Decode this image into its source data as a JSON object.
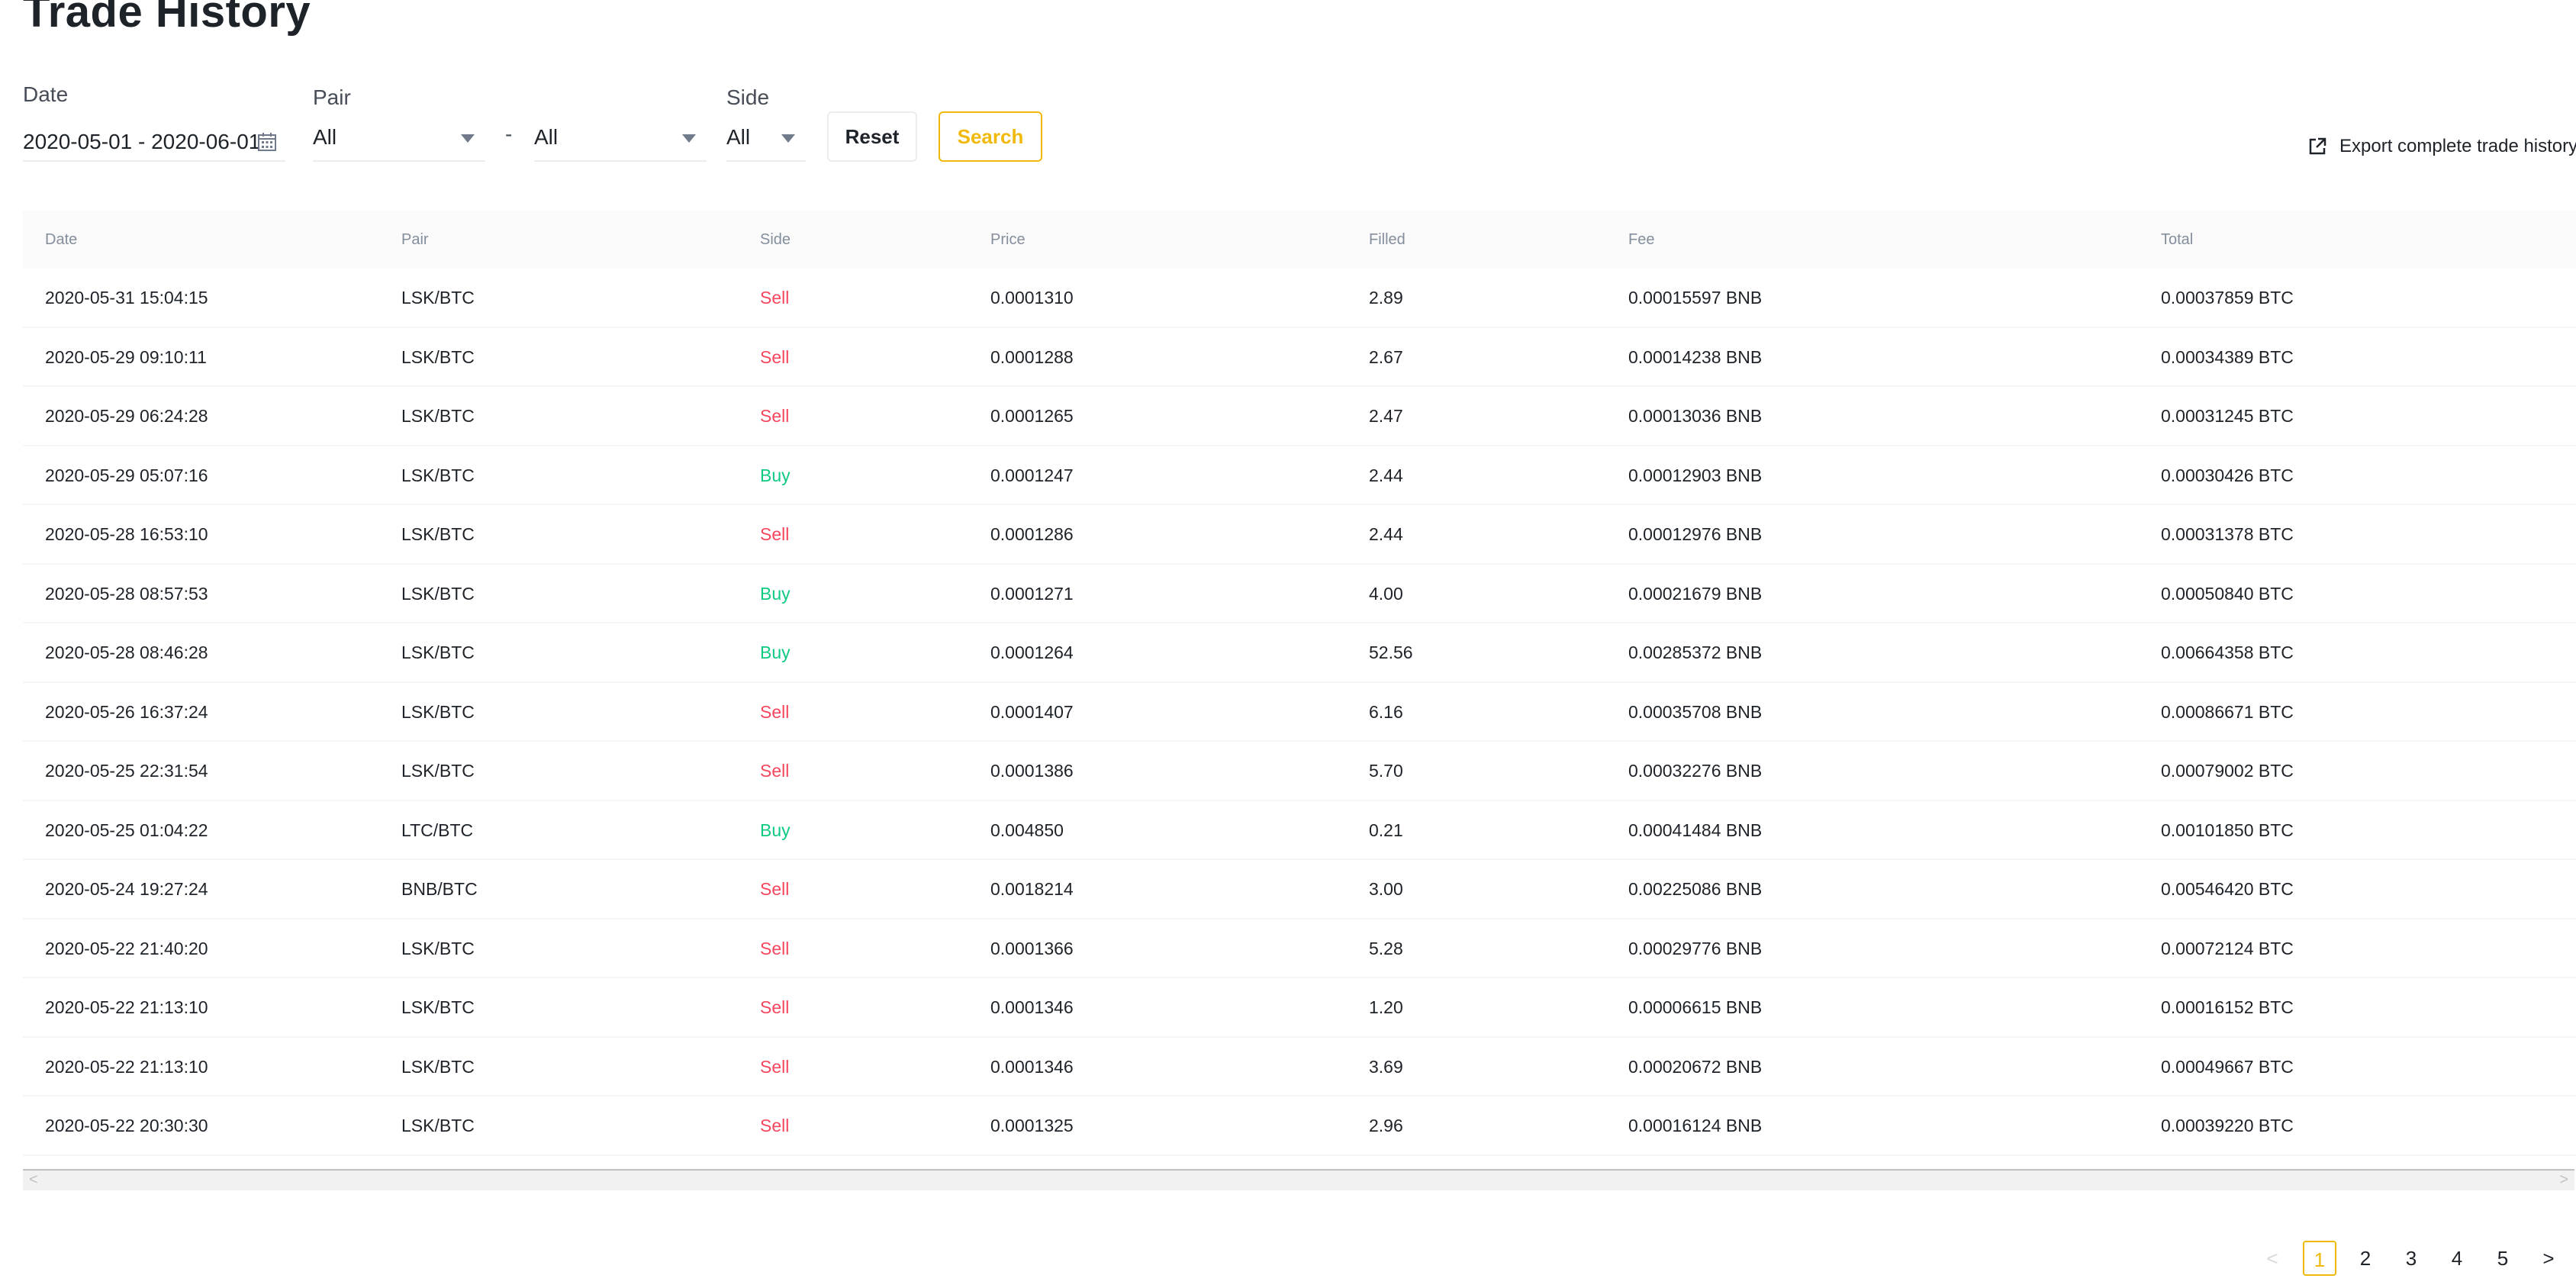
{
  "page": {
    "title": "Trade History"
  },
  "filters": {
    "date": {
      "label": "Date",
      "value": "2020-05-01 - 2020-06-01"
    },
    "pair": {
      "label": "Pair",
      "base_value": "All",
      "separator": "-",
      "quote_value": "All"
    },
    "side": {
      "label": "Side",
      "value": "All"
    },
    "reset_label": "Reset",
    "search_label": "Search"
  },
  "export": {
    "label": "Export complete trade history",
    "icon": "external-link-icon"
  },
  "table": {
    "columns": [
      "Date",
      "Pair",
      "Side",
      "Price",
      "Filled",
      "Fee",
      "Total"
    ],
    "rows": [
      {
        "date": "2020-05-31 15:04:15",
        "pair": "LSK/BTC",
        "side": "Sell",
        "price": "0.0001310",
        "filled": "2.89",
        "fee": "0.00015597 BNB",
        "total": "0.00037859 BTC"
      },
      {
        "date": "2020-05-29 09:10:11",
        "pair": "LSK/BTC",
        "side": "Sell",
        "price": "0.0001288",
        "filled": "2.67",
        "fee": "0.00014238 BNB",
        "total": "0.00034389 BTC"
      },
      {
        "date": "2020-05-29 06:24:28",
        "pair": "LSK/BTC",
        "side": "Sell",
        "price": "0.0001265",
        "filled": "2.47",
        "fee": "0.00013036 BNB",
        "total": "0.00031245 BTC"
      },
      {
        "date": "2020-05-29 05:07:16",
        "pair": "LSK/BTC",
        "side": "Buy",
        "price": "0.0001247",
        "filled": "2.44",
        "fee": "0.00012903 BNB",
        "total": "0.00030426 BTC"
      },
      {
        "date": "2020-05-28 16:53:10",
        "pair": "LSK/BTC",
        "side": "Sell",
        "price": "0.0001286",
        "filled": "2.44",
        "fee": "0.00012976 BNB",
        "total": "0.00031378 BTC"
      },
      {
        "date": "2020-05-28 08:57:53",
        "pair": "LSK/BTC",
        "side": "Buy",
        "price": "0.0001271",
        "filled": "4.00",
        "fee": "0.00021679 BNB",
        "total": "0.00050840 BTC"
      },
      {
        "date": "2020-05-28 08:46:28",
        "pair": "LSK/BTC",
        "side": "Buy",
        "price": "0.0001264",
        "filled": "52.56",
        "fee": "0.00285372 BNB",
        "total": "0.00664358 BTC"
      },
      {
        "date": "2020-05-26 16:37:24",
        "pair": "LSK/BTC",
        "side": "Sell",
        "price": "0.0001407",
        "filled": "6.16",
        "fee": "0.00035708 BNB",
        "total": "0.00086671 BTC"
      },
      {
        "date": "2020-05-25 22:31:54",
        "pair": "LSK/BTC",
        "side": "Sell",
        "price": "0.0001386",
        "filled": "5.70",
        "fee": "0.00032276 BNB",
        "total": "0.00079002 BTC"
      },
      {
        "date": "2020-05-25 01:04:22",
        "pair": "LTC/BTC",
        "side": "Buy",
        "price": "0.004850",
        "filled": "0.21",
        "fee": "0.00041484 BNB",
        "total": "0.00101850 BTC"
      },
      {
        "date": "2020-05-24 19:27:24",
        "pair": "BNB/BTC",
        "side": "Sell",
        "price": "0.0018214",
        "filled": "3.00",
        "fee": "0.00225086 BNB",
        "total": "0.00546420 BTC"
      },
      {
        "date": "2020-05-22 21:40:20",
        "pair": "LSK/BTC",
        "side": "Sell",
        "price": "0.0001366",
        "filled": "5.28",
        "fee": "0.00029776 BNB",
        "total": "0.00072124 BTC"
      },
      {
        "date": "2020-05-22 21:13:10",
        "pair": "LSK/BTC",
        "side": "Sell",
        "price": "0.0001346",
        "filled": "1.20",
        "fee": "0.00006615 BNB",
        "total": "0.00016152 BTC"
      },
      {
        "date": "2020-05-22 21:13:10",
        "pair": "LSK/BTC",
        "side": "Sell",
        "price": "0.0001346",
        "filled": "3.69",
        "fee": "0.00020672 BNB",
        "total": "0.00049667 BTC"
      },
      {
        "date": "2020-05-22 20:30:30",
        "pair": "LSK/BTC",
        "side": "Sell",
        "price": "0.0001325",
        "filled": "2.96",
        "fee": "0.00016124 BNB",
        "total": "0.00039220 BTC"
      }
    ]
  },
  "scrollbar": {
    "left_arrow": "<",
    "right_arrow": ">"
  },
  "pagination": {
    "prev": "<",
    "next": ">",
    "pages": [
      "1",
      "2",
      "3",
      "4",
      "5"
    ],
    "current": "1"
  },
  "colors": {
    "accent": "#f0b90b",
    "sell": "#f6465d",
    "buy": "#0ecb81",
    "text": "#1e2329",
    "muted": "#848e9c"
  }
}
